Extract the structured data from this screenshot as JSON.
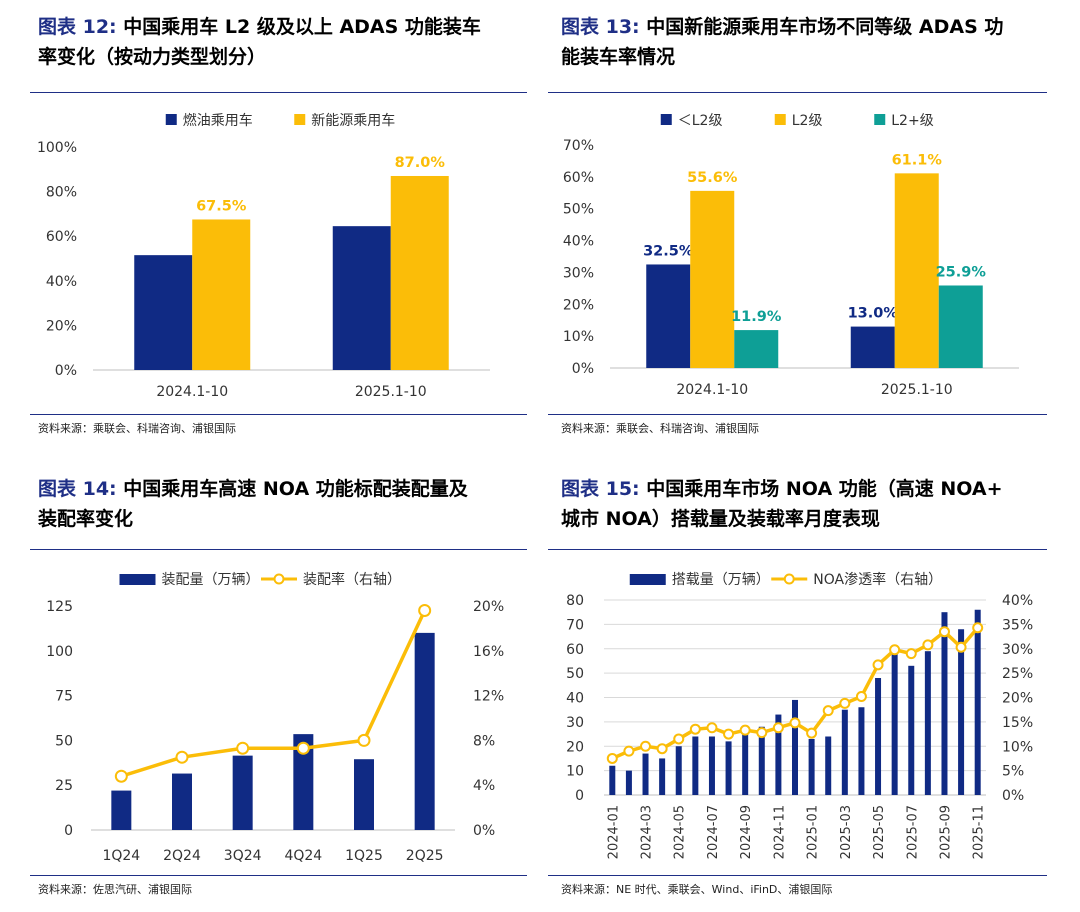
{
  "colors": {
    "navy": "#102a84",
    "gold": "#fbbd08",
    "teal": "#0e9f96",
    "title_blue": "#1f2f86",
    "grid": "#d9d9d9"
  },
  "panels": {
    "p12": {
      "label": "图表 12:",
      "title_line1": "中国乘用车 L2 级及以上 ADAS 功能装车",
      "title_line2": "率变化（按动力类型划分）",
      "source": "资料来源：乘联会、科瑞咨询、浦银国际"
    },
    "p13": {
      "label": "图表 13:",
      "title_line1": "中国新能源乘用车市场不同等级 ADAS 功",
      "title_line2": "能装车率情况",
      "source": "资料来源：乘联会、科瑞咨询、浦银国际"
    },
    "p14": {
      "label": "图表 14:",
      "title_line1": "中国乘用车高速 NOA 功能标配装配量及",
      "title_line2": "装配率变化",
      "source": "资料来源：佐思汽研、浦银国际"
    },
    "p15": {
      "label": "图表 15:",
      "title_line1": "中国乘用车市场 NOA 功能（高速 NOA+",
      "title_line2": "城市 NOA）搭载量及装载率月度表现",
      "source": "资料来源：NE 时代、乘联会、Wind、iFinD、浦银国际"
    }
  },
  "chart_data": [
    {
      "id": "c12",
      "type": "bar",
      "categories": [
        "2024.1-10",
        "2025.1-10"
      ],
      "series": [
        {
          "name": "燃油乘用车",
          "values": [
            51.5,
            64.5
          ],
          "labels": [
            "",
            ""
          ]
        },
        {
          "name": "新能源乘用车",
          "values": [
            67.5,
            87.0
          ],
          "labels": [
            "67.5%",
            "87.0%"
          ]
        }
      ],
      "ylim": [
        0,
        100
      ],
      "yticks": [
        "0%",
        "20%",
        "40%",
        "60%",
        "80%",
        "100%"
      ],
      "legend": "top"
    },
    {
      "id": "c13",
      "type": "bar",
      "categories": [
        "2024.1-10",
        "2025.1-10"
      ],
      "series": [
        {
          "name": "＜L2级",
          "values": [
            32.5,
            13.0
          ],
          "labels": [
            "32.5%",
            "13.0%"
          ]
        },
        {
          "name": "L2级",
          "values": [
            55.6,
            61.1
          ],
          "labels": [
            "55.6%",
            "61.1%"
          ]
        },
        {
          "name": "L2+级",
          "values": [
            11.9,
            25.9
          ],
          "labels": [
            "11.9%",
            "25.9%"
          ]
        }
      ],
      "ylim": [
        0,
        70
      ],
      "yticks": [
        "0%",
        "10%",
        "20%",
        "30%",
        "40%",
        "50%",
        "60%",
        "70%"
      ],
      "legend": "top"
    },
    {
      "id": "c14",
      "type": "bar+line",
      "categories": [
        "1Q24",
        "2Q24",
        "3Q24",
        "4Q24",
        "1Q25",
        "2Q25"
      ],
      "bar_series": {
        "name": "装配量（万辆）",
        "values": [
          22,
          31.5,
          41.5,
          53.5,
          39.5,
          110
        ]
      },
      "line_series": {
        "name": "装配率（右轴）",
        "values": [
          4.8,
          6.5,
          7.3,
          7.3,
          8.0,
          19.6
        ]
      },
      "ylim_left": [
        0,
        125
      ],
      "yticks_left": [
        "0",
        "25",
        "50",
        "75",
        "100",
        "125"
      ],
      "ylim_right": [
        0,
        20
      ],
      "yticks_right": [
        "0%",
        "4%",
        "8%",
        "12%",
        "16%",
        "20%"
      ],
      "legend": "top"
    },
    {
      "id": "c15",
      "type": "bar+line",
      "categories": [
        "2024-01",
        "2024-02",
        "2024-03",
        "2024-04",
        "2024-05",
        "2024-06",
        "2024-07",
        "2024-08",
        "2024-09",
        "2024-10",
        "2024-11",
        "2024-12",
        "2025-01",
        "2025-02",
        "2025-03",
        "2025-04",
        "2025-05",
        "2025-06",
        "2025-07",
        "2025-08",
        "2025-09",
        "2025-10",
        "2025-11"
      ],
      "xtick_labels": [
        "2024-01",
        "2024-03",
        "2024-05",
        "2024-07",
        "2024-09",
        "2024-11",
        "2025-01",
        "2025-03",
        "2025-05",
        "2025-07",
        "2025-09",
        "2025-11"
      ],
      "bar_series": {
        "name": "搭载量（万辆）",
        "values": [
          12,
          10,
          17,
          15,
          20,
          24,
          24,
          22,
          27,
          28,
          33,
          39,
          23,
          24,
          35,
          36,
          48,
          58,
          53,
          59,
          75,
          68,
          76
        ]
      },
      "line_series": {
        "name": "NOA渗透率（右轴）",
        "values": [
          7.5,
          9,
          10,
          9.5,
          11.5,
          13.5,
          13.8,
          12.5,
          13.3,
          12.8,
          13.8,
          14.8,
          12.7,
          17.3,
          18.8,
          20.2,
          26.7,
          29.8,
          29.0,
          30.8,
          33.5,
          30.3,
          34.3
        ]
      },
      "ylim_left": [
        0,
        80
      ],
      "yticks_left": [
        "0",
        "10",
        "20",
        "30",
        "40",
        "50",
        "60",
        "70",
        "80"
      ],
      "ylim_right": [
        0,
        40
      ],
      "yticks_right": [
        "0%",
        "5%",
        "10%",
        "15%",
        "20%",
        "25%",
        "30%",
        "35%",
        "40%"
      ],
      "legend": "top"
    }
  ]
}
